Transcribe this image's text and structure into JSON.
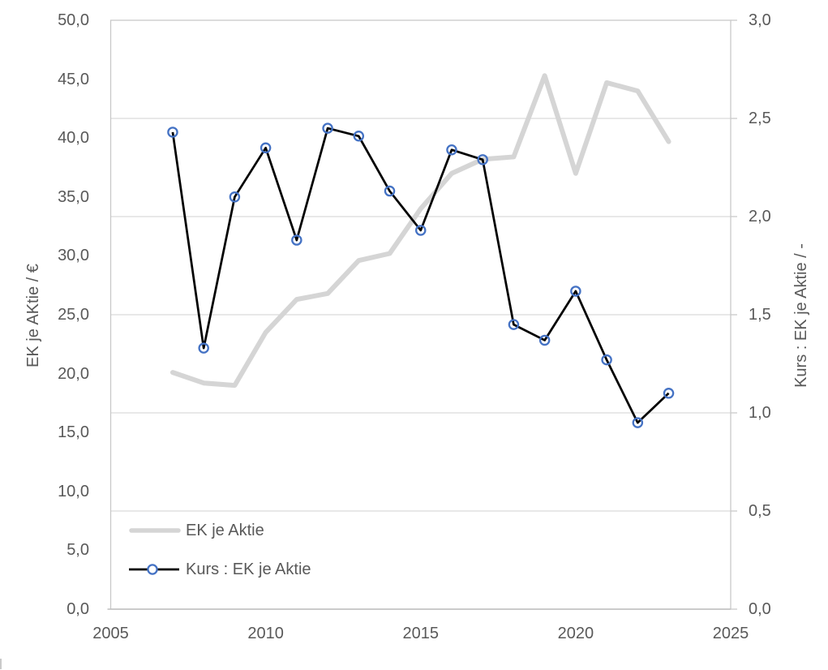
{
  "figure": {
    "background": "#ffffff",
    "text_color": "#595959",
    "gridline_color": "#dadada",
    "border_color": "#c9c9c9",
    "axis_line_color": "#bfbfbf"
  },
  "chart_data": {
    "type": "line",
    "title": "",
    "x": [
      2007,
      2008,
      2009,
      2010,
      2011,
      2012,
      2013,
      2014,
      2015,
      2016,
      2017,
      2018,
      2019,
      2020,
      2021,
      2022,
      2023
    ],
    "series": [
      {
        "name": "EK je Aktie",
        "axis": "left",
        "style": "thick solid line, no markers",
        "color": "#d5d5d5",
        "values": [
          20.1,
          19.2,
          19.0,
          23.5,
          26.3,
          26.8,
          29.6,
          30.2,
          34.0,
          37.0,
          38.2,
          38.4,
          45.3,
          37.0,
          44.7,
          44.0,
          39.7
        ]
      },
      {
        "name": "Kurs : EK je Aktie",
        "axis": "right",
        "style": "thin solid line with open circle markers",
        "color": "#000000",
        "marker_color": "#4472c4",
        "values": [
          2.43,
          1.33,
          2.1,
          2.35,
          1.88,
          2.45,
          2.41,
          2.13,
          1.93,
          2.34,
          2.29,
          1.45,
          1.37,
          1.62,
          1.27,
          0.95,
          1.1
        ]
      }
    ],
    "left_axis": {
      "title": "EK je AKtie / €",
      "min": 0,
      "max": 50,
      "tick_labels": [
        "0,0",
        "5,0",
        "10,0",
        "15,0",
        "20,0",
        "25,0",
        "30,0",
        "35,0",
        "40,0",
        "45,0",
        "50,0"
      ]
    },
    "right_axis": {
      "title": "Kurs : EK je Aktie / -",
      "min": 0,
      "max": 3,
      "tick_labels": [
        "0,0",
        "0,5",
        "1,0",
        "1,5",
        "2,0",
        "2,5",
        "3,0"
      ]
    },
    "x_axis": {
      "min": 2005,
      "max": 2025,
      "tick_labels": [
        "2005",
        "2010",
        "2015",
        "2020",
        "2025"
      ]
    },
    "grid": "horizontal gridlines at right-axis 0,5 steps; full light plot border",
    "legend_position": "inside plot, bottom-left"
  }
}
